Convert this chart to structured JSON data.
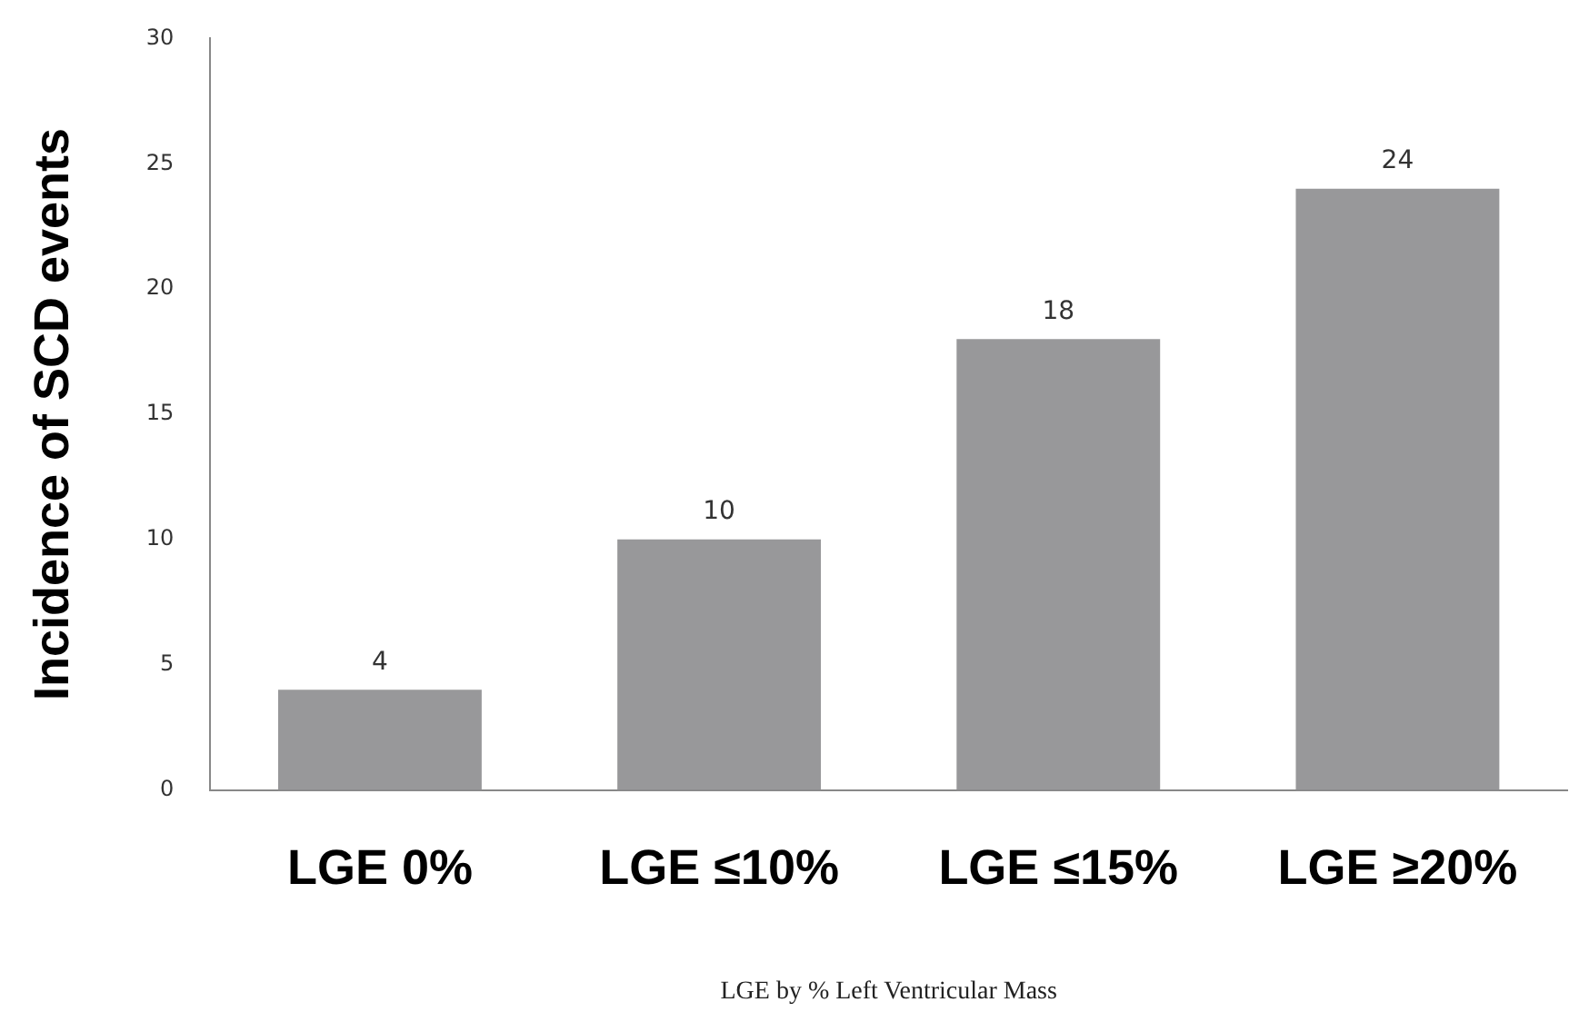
{
  "chart_data": {
    "type": "bar",
    "categories": [
      "LGE 0%",
      "LGE ≤10%",
      "LGE ≤15%",
      "LGE ≥20%"
    ],
    "values": [
      4,
      10,
      18,
      24
    ],
    "color": "#98989a",
    "ylim": [
      0,
      30
    ],
    "yticks": [
      0,
      5,
      10,
      15,
      20,
      25,
      30
    ],
    "grid": false,
    "legend": false,
    "data_labels": true,
    "xlabel": "LGE by % Left Ventricular Mass",
    "ylabel": "Incidence of SCD events"
  }
}
